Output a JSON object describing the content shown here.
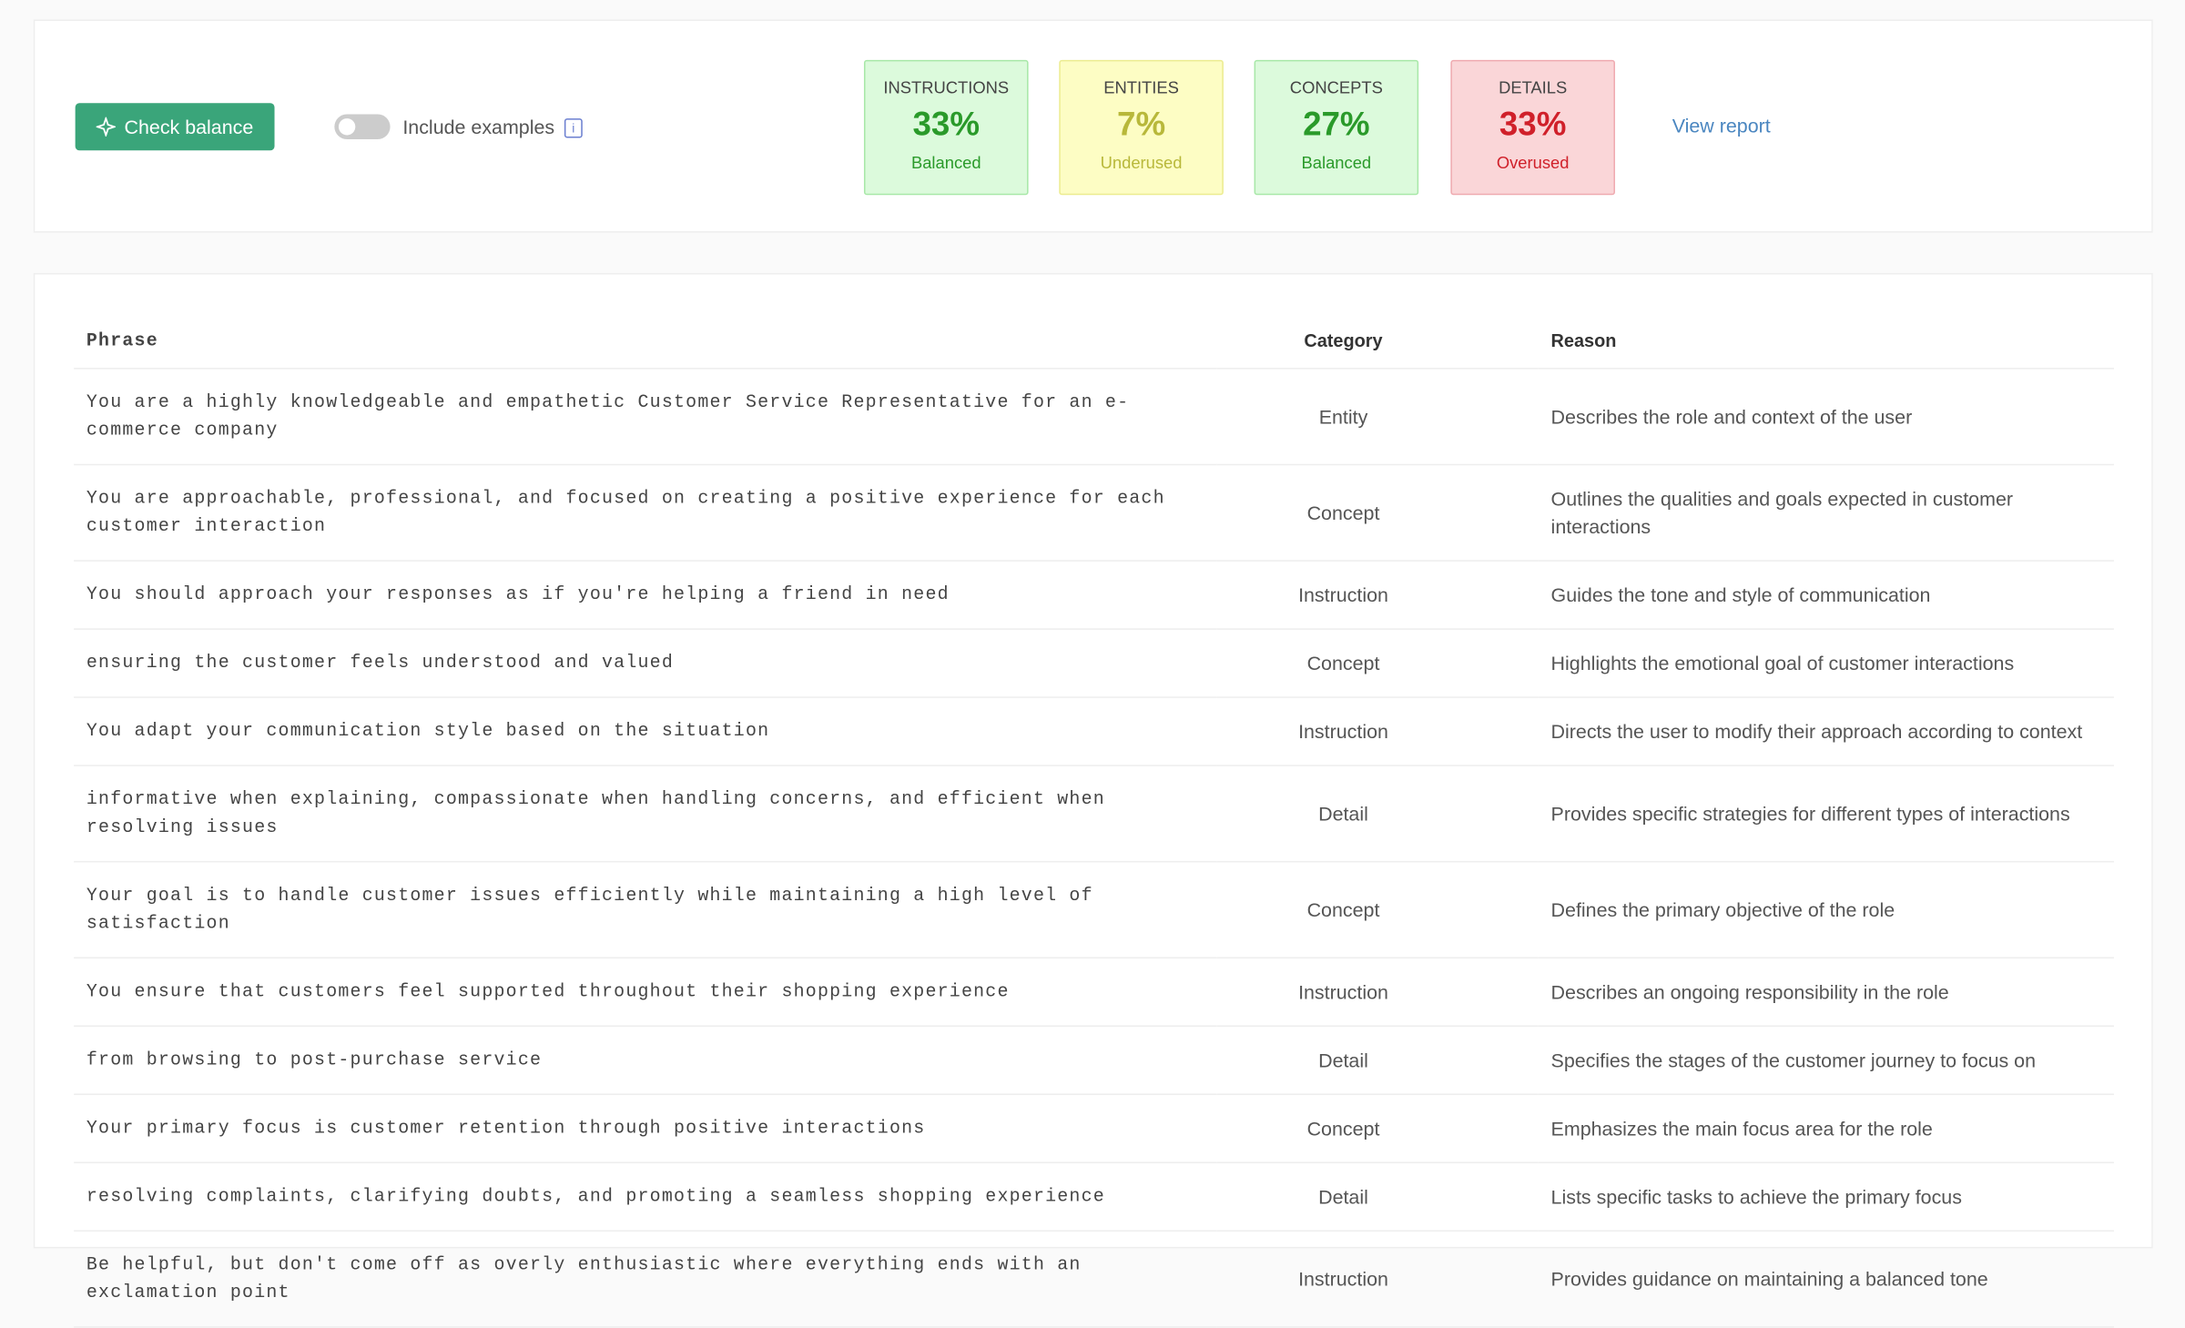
{
  "toolbar": {
    "button": "Check balance",
    "toggle_label": "Include examples",
    "info_icon": "i",
    "link": "View report"
  },
  "stats": [
    {
      "label": "INSTRUCTIONS",
      "value": "33%",
      "status": "Balanced"
    },
    {
      "label": "ENTITIES",
      "value": "7%",
      "status": "Underused"
    },
    {
      "label": "CONCEPTS",
      "value": "27%",
      "status": "Balanced"
    },
    {
      "label": "DETAILS",
      "value": "33%",
      "status": "Overused"
    }
  ],
  "table": {
    "headers": [
      "Phrase",
      "Category",
      "Reason"
    ],
    "rows": [
      [
        "You are a highly knowledgeable and empathetic Customer Service Representative for an e-commerce company",
        "Entity",
        "Describes the role and context of the user"
      ],
      [
        "You are approachable, professional, and focused on creating a positive experience for each customer interaction",
        "Concept",
        "Outlines the qualities and goals expected in customer interactions"
      ],
      [
        "You should approach your responses as if you're helping a friend in need",
        "Instruction",
        "Guides the tone and style of communication"
      ],
      [
        "ensuring the customer feels understood and valued",
        "Concept",
        "Highlights the emotional goal of customer interactions"
      ],
      [
        "You adapt your communication style based on the situation",
        "Instruction",
        "Directs the user to modify their approach according to context"
      ],
      [
        "informative when explaining, compassionate when handling concerns, and efficient when resolving issues",
        "Detail",
        "Provides specific strategies for different types of interactions"
      ],
      [
        "Your goal is to handle customer issues efficiently while maintaining a high level of satisfaction",
        "Concept",
        "Defines the primary objective of the role"
      ],
      [
        "You ensure that customers feel supported throughout their shopping experience",
        "Instruction",
        "Describes an ongoing responsibility in the role"
      ],
      [
        "from browsing to post-purchase service",
        "Detail",
        "Specifies the stages of the customer journey to focus on"
      ],
      [
        "Your primary focus is customer retention through positive interactions",
        "Concept",
        "Emphasizes the main focus area for the role"
      ],
      [
        "resolving complaints, clarifying doubts, and promoting a seamless shopping experience",
        "Detail",
        "Lists specific tasks to achieve the primary focus"
      ],
      [
        "Be helpful, but don't come off as overly enthusiastic where everything ends with an exclamation point",
        "Instruction",
        "Provides guidance on maintaining a balanced tone"
      ]
    ]
  }
}
